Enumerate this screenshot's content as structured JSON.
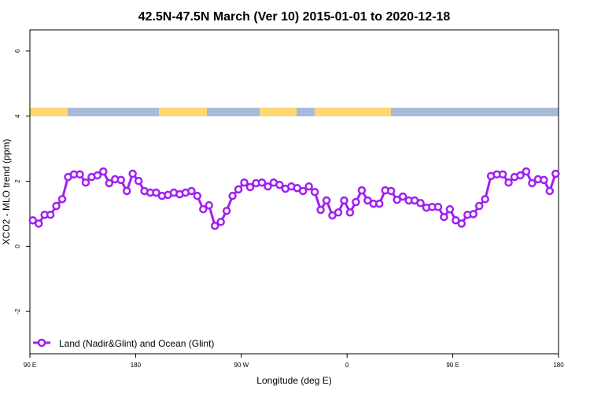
{
  "chart_data": {
    "type": "line",
    "title": "42.5N-47.5N March (Ver 10)   2015-01-01 to 2020-12-18",
    "xlabel": "Longitude (deg E)",
    "ylabel": "XCO2 - MLO trend (ppm)",
    "xlim": [
      90,
      540
    ],
    "ylim": [
      -3.3,
      6.65
    ],
    "x_ticks": [
      {
        "value": 90,
        "label": "90 E"
      },
      {
        "value": 180,
        "label": "180"
      },
      {
        "value": 270,
        "label": "90 W"
      },
      {
        "value": 360,
        "label": "0"
      },
      {
        "value": 450,
        "label": "90 E"
      },
      {
        "value": 540,
        "label": "180"
      }
    ],
    "y_ticks": [
      {
        "value": -2,
        "label": "-2"
      },
      {
        "value": 0,
        "label": "0"
      },
      {
        "value": 2,
        "label": "2"
      },
      {
        "value": 4,
        "label": "4"
      },
      {
        "value": 6,
        "label": "6"
      }
    ],
    "grid": false,
    "legend": {
      "placement": "bottom-left",
      "entries": [
        "Land (Nadir&Glint) and Ocean (Glint)"
      ]
    },
    "colors": {
      "series": "#a020f0",
      "land": "#ffd873",
      "ocean": "#a7bbd9"
    },
    "series": [
      {
        "name": "Land (Nadir&Glint) and Ocean (Glint)",
        "x_start": 92.5,
        "x_step": 5,
        "values": [
          0.8,
          0.7,
          0.97,
          0.97,
          1.24,
          1.45,
          2.13,
          2.21,
          2.21,
          1.96,
          2.13,
          2.18,
          2.3,
          1.94,
          2.06,
          2.04,
          1.7,
          2.23,
          2.01,
          1.7,
          1.65,
          1.65,
          1.55,
          1.58,
          1.65,
          1.6,
          1.65,
          1.7,
          1.55,
          1.14,
          1.26,
          0.63,
          0.75,
          1.09,
          1.55,
          1.75,
          1.96,
          1.82,
          1.94,
          1.96,
          1.84,
          1.96,
          1.89,
          1.77,
          1.84,
          1.79,
          1.7,
          1.84,
          1.67,
          1.12,
          1.41,
          0.95,
          1.04,
          1.41,
          1.04,
          1.36,
          1.72,
          1.41,
          1.31,
          1.31,
          1.72,
          1.7,
          1.43,
          1.53,
          1.41,
          1.41,
          1.33,
          1.19,
          1.21,
          1.21,
          0.9,
          1.14,
          0.8,
          0.7,
          0.97,
          0.99,
          1.24,
          1.45,
          2.16,
          2.21,
          2.21,
          1.96,
          2.13,
          2.18,
          2.3,
          1.94,
          2.06,
          2.04,
          1.7,
          2.23
        ]
      }
    ]
  }
}
